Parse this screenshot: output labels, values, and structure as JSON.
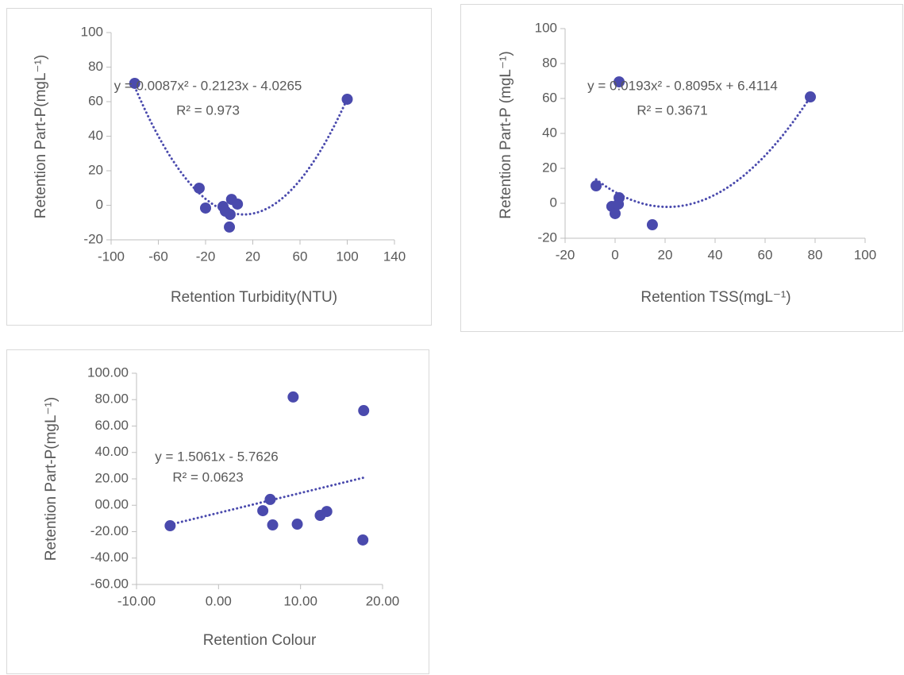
{
  "chart_data": [
    {
      "type": "scatter",
      "x_label": "Retention Turbidity(NTU)",
      "y_label": "Retention Part-P(mgL⁻¹)",
      "color": "#4a4aad",
      "x": [
        -80,
        -25.4,
        -20,
        -5.2,
        -3.2,
        0.8,
        2,
        0.2,
        7,
        100
      ],
      "values": [
        70.6,
        9.9,
        -1.6,
        -0.7,
        -3.4,
        -5.3,
        3.4,
        -12.6,
        0.7,
        61.4
      ],
      "xlim": [
        -100,
        140
      ],
      "xticks": [
        -100,
        -60,
        -20,
        20,
        60,
        100,
        140
      ],
      "ylim": [
        -20,
        100
      ],
      "yticks": [
        -20,
        0,
        20,
        40,
        60,
        80,
        100
      ],
      "trendline": {
        "coefficients": [
          0.0087,
          -0.2123,
          -4.0265
        ],
        "equation": "y = 0.0087x² - 0.2123x - 4.0265",
        "r_squared_label": "R² = 0.973"
      }
    },
    {
      "type": "scatter",
      "x_label": "Retention TSS(mgL⁻¹)",
      "y_label": "Retention Part-P (mgL⁻¹)",
      "color": "#4a4aad",
      "x": [
        -7.6,
        1.6,
        1.6,
        -1.3,
        0,
        1.3,
        14.9,
        78.1
      ],
      "values": [
        10,
        69.5,
        3.2,
        -1.8,
        -5.9,
        -0.5,
        -12.3,
        60.9
      ],
      "xlim": [
        -20,
        100
      ],
      "xticks": [
        -20,
        0,
        20,
        40,
        60,
        80,
        100
      ],
      "ylim": [
        -20,
        100
      ],
      "yticks": [
        -20,
        0,
        20,
        40,
        60,
        80,
        100
      ],
      "trendline": {
        "coefficients": [
          0.0193,
          -0.8095,
          6.4114
        ],
        "equation": "y = 0.0193x² - 0.8095x + 6.4114",
        "r_squared_label": "R² = 0.3671"
      }
    },
    {
      "type": "scatter",
      "x_label": "Retention Colour",
      "y_label": "Retention Part-P(mgL⁻¹)",
      "color": "#4a4aad",
      "x": [
        -5.9,
        5.4,
        6.3,
        6.6,
        9.1,
        9.6,
        12.4,
        13.2,
        17.7,
        17.6
      ],
      "values": [
        -15.5,
        -4.1,
        4.4,
        -14.9,
        82.0,
        -14.3,
        -7.7,
        -4.7,
        71.7,
        -26.3
      ],
      "xlim": [
        -10,
        20
      ],
      "xticks": [
        {
          "value": -10,
          "label": "-10.00"
        },
        {
          "value": 0,
          "label": "0.00"
        },
        {
          "value": 10,
          "label": "10.00"
        },
        {
          "value": 20,
          "label": "20.00"
        }
      ],
      "ylim": [
        -60,
        100
      ],
      "yticks": [
        {
          "value": -60,
          "label": "-60.00"
        },
        {
          "value": -40,
          "label": "-40.00"
        },
        {
          "value": -20,
          "label": "-20.00"
        },
        {
          "value": 0,
          "label": "00.00"
        },
        {
          "value": 20,
          "label": "20.00"
        },
        {
          "value": 40,
          "label": "40.00"
        },
        {
          "value": 60,
          "label": "60.00"
        },
        {
          "value": 80,
          "label": "80.00"
        },
        {
          "value": 100,
          "label": "100.00"
        }
      ],
      "trendline": {
        "coefficients": [
          1.5061,
          -5.7626
        ],
        "equation": "y = 1.5061x - 5.7626",
        "r_squared_label": "R² = 0.0623"
      }
    }
  ]
}
